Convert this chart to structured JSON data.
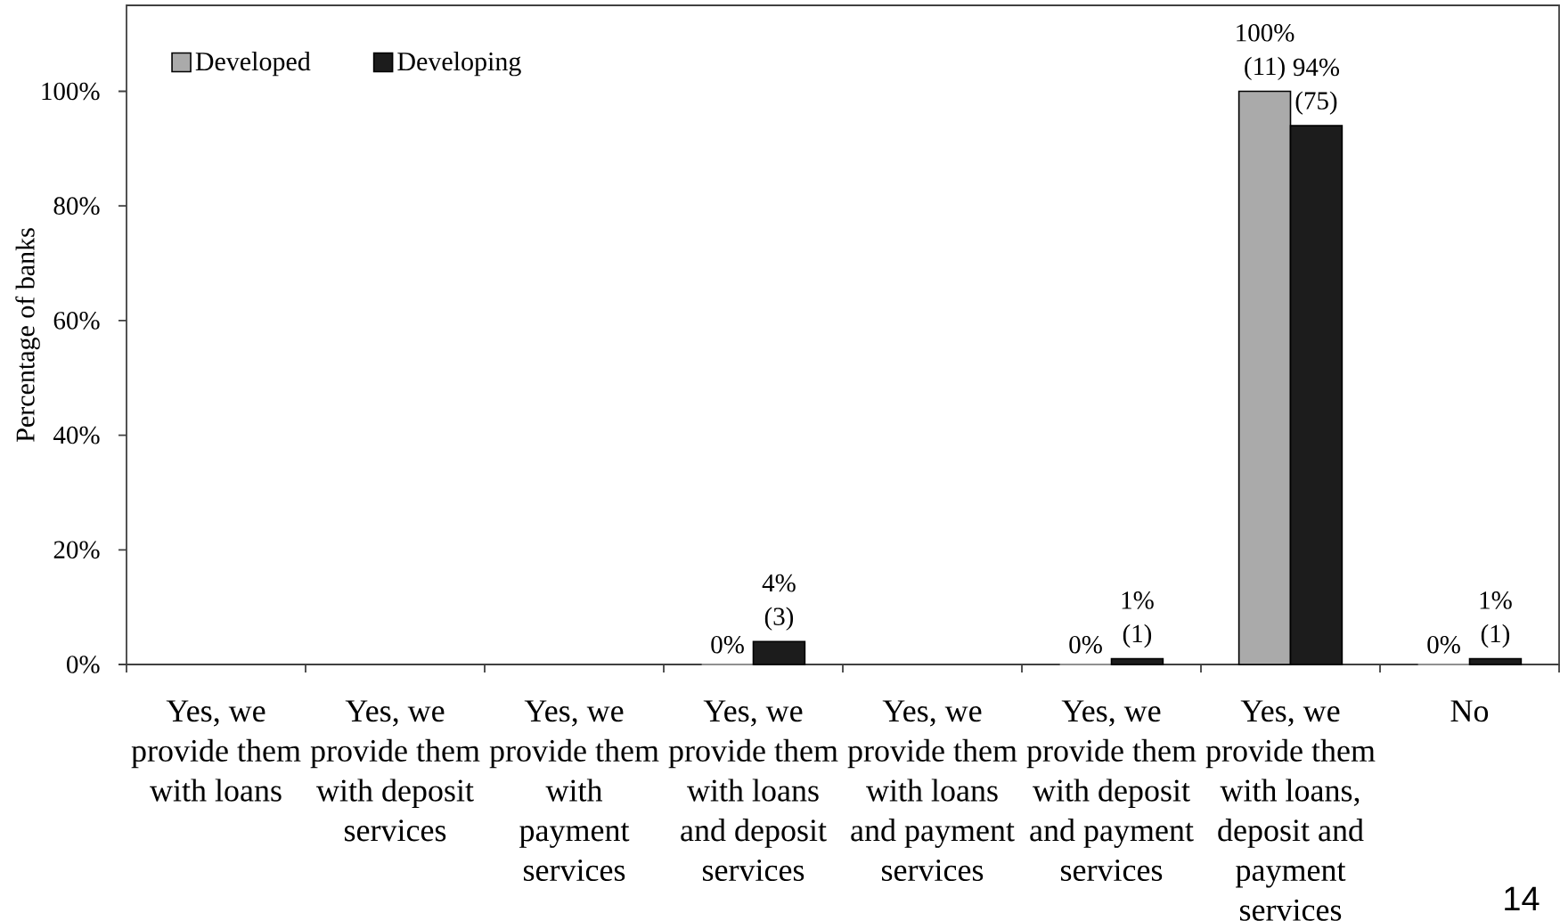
{
  "chart_data": {
    "type": "bar",
    "categories": [
      "Yes, we provide them with loans",
      "Yes, we provide them with deposit services",
      "Yes, we provide them with payment services",
      "Yes, we provide them with loans and deposit services",
      "Yes, we provide them with loans and payment services",
      "Yes, we provide them with deposit and payment services",
      "Yes, we provide them with loans, deposit and payment services",
      "No"
    ],
    "ylabel": "Percentage of banks",
    "ylim": [
      0,
      115
    ],
    "yticks": [
      {
        "value": 0,
        "label": "0%"
      },
      {
        "value": 20,
        "label": "20%"
      },
      {
        "value": 40,
        "label": "40%"
      },
      {
        "value": 60,
        "label": "60%"
      },
      {
        "value": 80,
        "label": "80%"
      },
      {
        "value": 100,
        "label": "100%"
      }
    ],
    "series": [
      {
        "name": "Developed",
        "color": "#aaaaaa",
        "values": [
          null,
          null,
          null,
          0,
          null,
          0,
          100,
          0
        ],
        "value_labels": [
          null,
          null,
          null,
          "0%",
          null,
          "0%",
          "100% (11)",
          "0%"
        ]
      },
      {
        "name": "Developing",
        "color": "#1c1c1c",
        "values": [
          null,
          null,
          null,
          4,
          null,
          1,
          94,
          1
        ],
        "value_labels": [
          null,
          null,
          null,
          "4% (3)",
          null,
          "1% (1)",
          "94% (75)",
          "1% (1)"
        ]
      }
    ],
    "legend": "top left",
    "annotations": [
      "14"
    ]
  }
}
